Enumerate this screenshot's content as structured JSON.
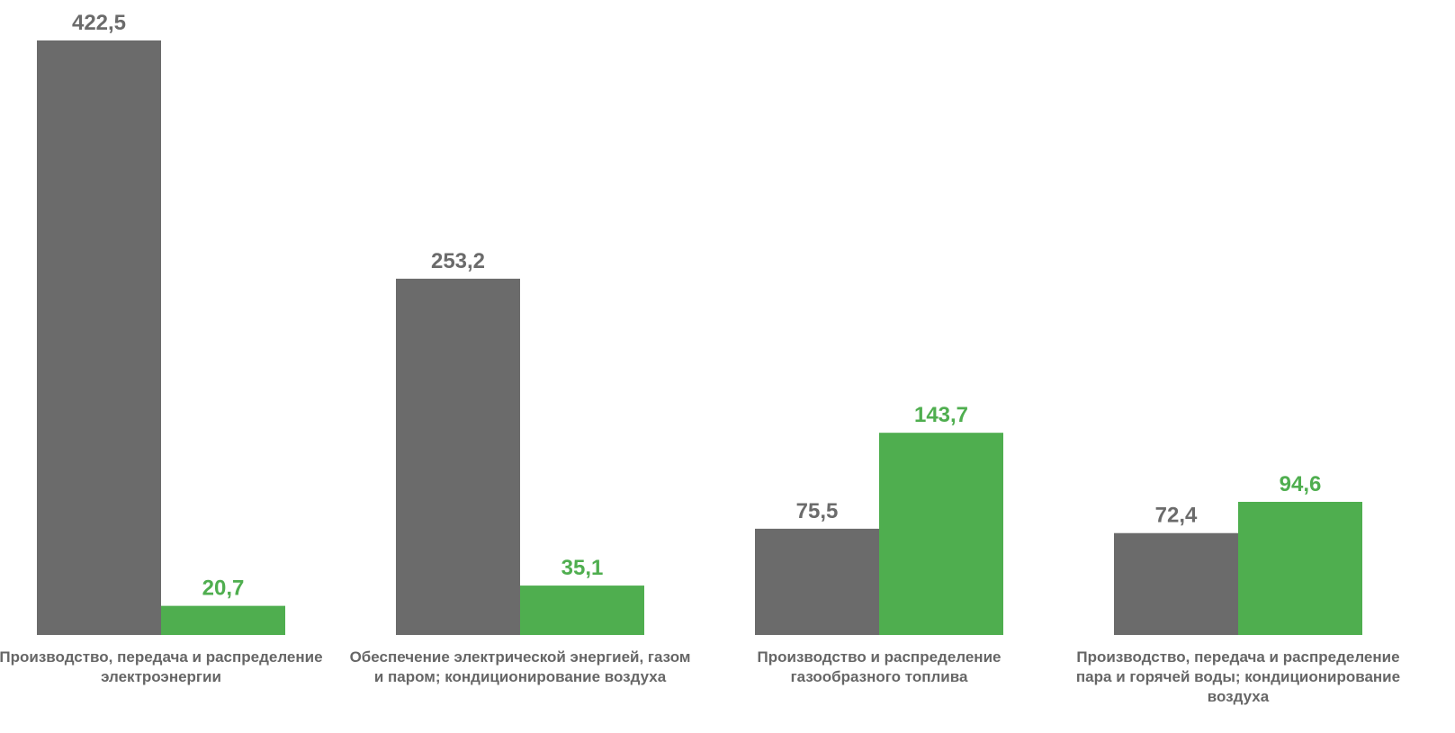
{
  "chart_data": {
    "type": "bar",
    "categories": [
      "Производство, передача и распределение электроэнергии",
      "Обеспечение электрической энергией, газом и паром; кондиционирование воздуха",
      "Производство и распределение газообразного топлива",
      "Производство, передача и распределение пара и горячей воды; кондиционирование воздуха"
    ],
    "series": [
      {
        "color": "#6b6b6b",
        "values": [
          422.5,
          253.2,
          75.5,
          72.4
        ],
        "value_labels": [
          "422,5",
          "253,2",
          "75,5",
          "72,4"
        ]
      },
      {
        "color": "#4fae4f",
        "values": [
          20.7,
          35.1,
          143.7,
          94.6
        ],
        "value_labels": [
          "20,7",
          "35,1",
          "143,7",
          "94,6"
        ]
      }
    ]
  }
}
